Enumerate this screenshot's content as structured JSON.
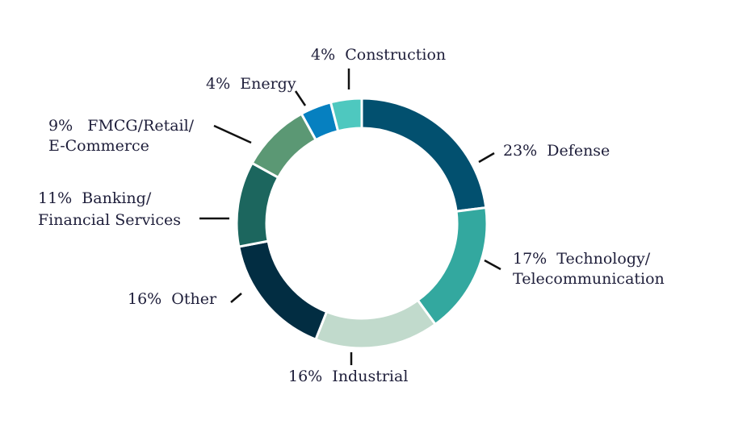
{
  "chart_data": {
    "type": "pie",
    "donut": true,
    "legend": "none",
    "slices": [
      {
        "pct": "23%",
        "label": "Defense",
        "label_lines": [
          "23%  Defense"
        ],
        "value": 23,
        "color": "#02506f"
      },
      {
        "pct": "17%",
        "label": "Technology/ Telecommunication",
        "label_lines": [
          "17%  Technology/",
          "Telecommunication"
        ],
        "value": 17,
        "color": "#33a89f"
      },
      {
        "pct": "16%",
        "label": "Industrial",
        "label_lines": [
          "16%  Industrial"
        ],
        "value": 16,
        "color": "#c1dacc"
      },
      {
        "pct": "16%",
        "label": "Other",
        "label_lines": [
          "16%  Other"
        ],
        "value": 16,
        "color": "#022d42"
      },
      {
        "pct": "11%",
        "label": "Banking/ Financial Services",
        "label_lines": [
          "11%  Banking/",
          "Financial Services"
        ],
        "value": 11,
        "color": "#1c665e"
      },
      {
        "pct": "9%",
        "label": "FMCG/Retail/ E-Commerce",
        "label_lines": [
          "9%   FMCG/Retail/",
          "E-Commerce"
        ],
        "value": 9,
        "color": "#5b9874"
      },
      {
        "pct": "4%",
        "label": "Energy",
        "label_lines": [
          "4%  Energy"
        ],
        "value": 4,
        "color": "#0680c0"
      },
      {
        "pct": "4%",
        "label": "Construction",
        "label_lines": [
          "4%  Construction"
        ],
        "value": 4,
        "color": "#4ec8bf"
      }
    ]
  }
}
